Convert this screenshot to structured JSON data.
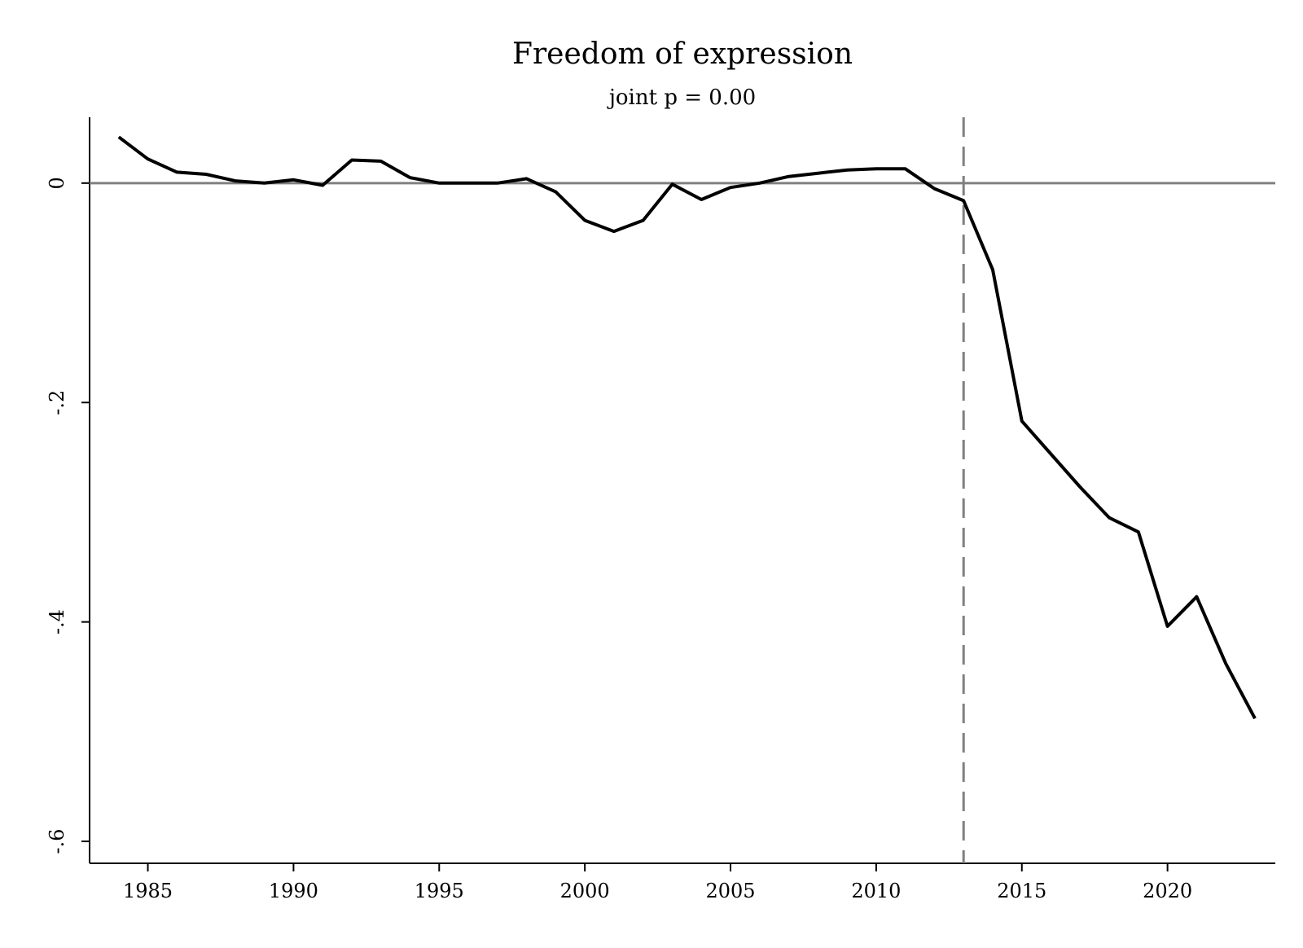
{
  "chart_data": {
    "type": "line",
    "title": "Freedom of expression",
    "subtitle": "joint p = 0.00",
    "xlabel": "",
    "ylabel": "",
    "xlim": [
      1983,
      2023.7
    ],
    "ylim": [
      -0.62,
      0.06
    ],
    "x_ticks": [
      1985,
      1990,
      1995,
      2000,
      2005,
      2010,
      2015,
      2020
    ],
    "x_tick_labels": [
      "1985",
      "1990",
      "1995",
      "2000",
      "2005",
      "2010",
      "2015",
      "2020"
    ],
    "y_ticks": [
      0,
      -0.2,
      -0.4,
      -0.6
    ],
    "y_tick_labels": [
      "0",
      "-.2",
      "-.4",
      "-.6"
    ],
    "reference_hline": 0,
    "reference_vline": 2013,
    "grid": false,
    "colors": {
      "line": "#000000",
      "reference": "#808080",
      "axis": "#000000"
    },
    "series": [
      {
        "x": [
          1984,
          1985,
          1986,
          1987,
          1988,
          1989,
          1990,
          1991,
          1992,
          1993,
          1994,
          1995,
          1996,
          1997,
          1998,
          1999,
          2000,
          2001,
          2002,
          2003,
          2004,
          2005,
          2006,
          2007,
          2008,
          2009,
          2010,
          2011,
          2012,
          2013,
          2014,
          2015,
          2016,
          2017,
          2018,
          2019,
          2020,
          2021,
          2022,
          2023
        ],
        "y": [
          0.042,
          0.022,
          0.01,
          0.008,
          0.002,
          0.0,
          0.003,
          -0.002,
          0.021,
          0.02,
          0.005,
          0.0,
          0.0,
          0.0,
          0.004,
          -0.008,
          -0.034,
          -0.044,
          -0.034,
          -0.001,
          -0.015,
          -0.004,
          0.0,
          0.006,
          0.009,
          0.012,
          0.013,
          0.013,
          -0.005,
          -0.016,
          -0.079,
          -0.217,
          -0.247,
          -0.277,
          -0.305,
          -0.318,
          -0.404,
          -0.377,
          -0.438,
          -0.488
        ]
      }
    ]
  }
}
